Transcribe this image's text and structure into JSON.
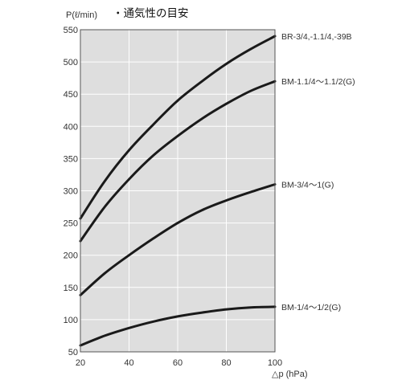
{
  "chart_data": {
    "type": "line",
    "title": "・通気性の目安",
    "xlabel": "△p (hPa)",
    "ylabel": "P(ℓ/min)",
    "xlim": [
      20,
      100
    ],
    "ylim": [
      50,
      550
    ],
    "x_ticks": [
      20,
      40,
      60,
      80,
      100
    ],
    "y_ticks": [
      50,
      100,
      150,
      200,
      250,
      300,
      350,
      400,
      450,
      500,
      550
    ],
    "x_tick_labels": [
      "20",
      "40",
      "60",
      "80",
      "100"
    ],
    "y_tick_labels": [
      "50",
      "100",
      "150",
      "200",
      "250",
      "300",
      "350",
      "400",
      "450",
      "500",
      "550"
    ],
    "grid": true,
    "background": "#dedede",
    "line_color": "#1a1a1a",
    "series": [
      {
        "name": "BR-3/4,-1.1/4,-39B",
        "x": [
          20,
          30,
          40,
          50,
          60,
          70,
          80,
          90,
          100
        ],
        "values": [
          257,
          315,
          363,
          403,
          440,
          470,
          497,
          520,
          540
        ]
      },
      {
        "name": "BM-1.1/4～1.1/2(G)",
        "x": [
          20,
          30,
          40,
          50,
          60,
          70,
          80,
          90,
          100
        ],
        "values": [
          222,
          275,
          318,
          355,
          385,
          412,
          435,
          455,
          470
        ]
      },
      {
        "name": "BM-3/4～1(G)",
        "x": [
          20,
          30,
          40,
          50,
          60,
          70,
          80,
          90,
          100
        ],
        "values": [
          138,
          172,
          200,
          226,
          250,
          270,
          285,
          298,
          310
        ]
      },
      {
        "name": "BM-1/4～1/2(G)",
        "x": [
          20,
          30,
          40,
          50,
          60,
          70,
          80,
          90,
          100
        ],
        "values": [
          60,
          75,
          87,
          97,
          105,
          111,
          116,
          119,
          120
        ]
      }
    ]
  }
}
